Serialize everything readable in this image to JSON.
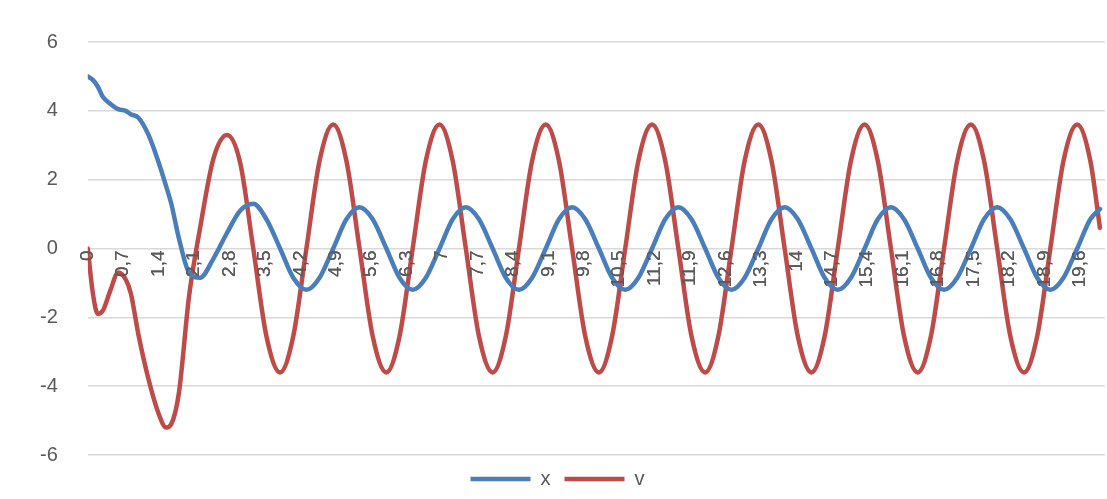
{
  "chart_data": {
    "type": "line",
    "x": [
      0,
      0.1,
      0.2,
      0.3,
      0.45,
      0.6,
      0.75,
      0.85,
      1.0,
      1.2,
      1.4,
      1.55,
      1.65,
      1.8,
      2.0,
      2.22,
      2.48,
      2.75,
      3.01,
      3.27,
      3.53,
      3.8,
      4.06,
      4.32,
      4.58,
      4.85,
      5.11,
      5.37,
      5.63,
      5.9,
      6.16,
      6.42,
      6.68,
      6.95,
      7.21,
      7.47,
      7.73,
      8.0,
      8.26,
      8.52,
      8.78,
      9.05,
      9.31,
      9.57,
      9.83,
      10.1,
      10.36,
      10.62,
      10.88,
      11.15,
      11.41,
      11.67,
      11.93,
      12.2,
      12.46,
      12.72,
      12.98,
      13.25,
      13.51,
      13.77,
      14.03,
      14.3,
      14.56,
      14.82,
      15.08,
      15.35,
      15.61,
      15.87,
      16.13,
      16.4,
      16.66,
      16.92,
      17.18,
      17.45,
      17.71,
      17.97,
      18.23,
      18.5,
      18.76,
      19.02,
      19.28,
      19.55,
      19.81,
      20.0
    ],
    "series": [
      {
        "name": "x",
        "color": "#4a7ebb",
        "values": [
          5,
          4.9,
          4.7,
          4.4,
          4.2,
          4.05,
          4.0,
          3.9,
          3.8,
          3.3,
          2.5,
          1.8,
          1.3,
          0.3,
          -0.7,
          -0.85,
          -0.3,
          0.45,
          1.1,
          1.3,
          0.85,
          0,
          -0.85,
          -1.2,
          -0.85,
          0,
          0.85,
          1.2,
          0.85,
          0,
          -0.85,
          -1.2,
          -0.85,
          0,
          0.85,
          1.2,
          0.85,
          0,
          -0.85,
          -1.2,
          -0.85,
          0,
          0.85,
          1.2,
          0.85,
          0,
          -0.85,
          -1.2,
          -0.85,
          0,
          0.85,
          1.2,
          0.85,
          0,
          -0.85,
          -1.2,
          -0.85,
          0,
          0.85,
          1.2,
          0.85,
          0,
          -0.85,
          -1.2,
          -0.85,
          0,
          0.85,
          1.2,
          0.85,
          0,
          -0.85,
          -1.2,
          -0.85,
          0,
          0.85,
          1.2,
          0.85,
          0,
          -0.85,
          -1.2,
          -0.85,
          0,
          0.85,
          1.15
        ]
      },
      {
        "name": "v",
        "color": "#be4b48",
        "values": [
          0,
          -1.3,
          -1.9,
          -1.8,
          -1.2,
          -0.7,
          -0.9,
          -1.3,
          -2.5,
          -3.8,
          -4.8,
          -5.2,
          -5.1,
          -4.2,
          -1.4,
          0.6,
          2.6,
          3.3,
          2.5,
          0,
          -2.55,
          -3.6,
          -2.55,
          0,
          2.55,
          3.6,
          2.55,
          0,
          -2.55,
          -3.6,
          -2.55,
          0,
          2.55,
          3.6,
          2.55,
          0,
          -2.55,
          -3.6,
          -2.55,
          0,
          2.55,
          3.6,
          2.55,
          0,
          -2.55,
          -3.6,
          -2.55,
          0,
          2.55,
          3.6,
          2.55,
          0,
          -2.55,
          -3.6,
          -2.55,
          0,
          2.55,
          3.6,
          2.55,
          0,
          -2.55,
          -3.6,
          -2.55,
          0,
          2.55,
          3.6,
          2.55,
          0,
          -2.55,
          -3.6,
          -2.55,
          0,
          2.55,
          3.6,
          2.55,
          0,
          -2.55,
          -3.6,
          -2.55,
          0,
          2.55,
          3.6,
          2.55,
          0.6
        ]
      }
    ],
    "xlim": [
      0,
      20.1
    ],
    "xticks": [
      {
        "value": 0,
        "label": "0"
      },
      {
        "value": 0.7,
        "label": "0,7"
      },
      {
        "value": 1.4,
        "label": "1,4"
      },
      {
        "value": 2.1,
        "label": "2,1"
      },
      {
        "value": 2.8,
        "label": "2,8"
      },
      {
        "value": 3.5,
        "label": "3,5"
      },
      {
        "value": 4.2,
        "label": "4,2"
      },
      {
        "value": 4.9,
        "label": "4,9"
      },
      {
        "value": 5.6,
        "label": "5,6"
      },
      {
        "value": 6.3,
        "label": "6,3"
      },
      {
        "value": 7,
        "label": "7"
      },
      {
        "value": 7.7,
        "label": "7,7"
      },
      {
        "value": 8.4,
        "label": "8,4"
      },
      {
        "value": 9.1,
        "label": "9,1"
      },
      {
        "value": 9.8,
        "label": "9,8"
      },
      {
        "value": 10.5,
        "label": "10,5"
      },
      {
        "value": 11.2,
        "label": "11,2"
      },
      {
        "value": 11.9,
        "label": "11,9"
      },
      {
        "value": 12.6,
        "label": "12,6"
      },
      {
        "value": 13.3,
        "label": "13,3"
      },
      {
        "value": 14,
        "label": "14"
      },
      {
        "value": 14.7,
        "label": "14,7"
      },
      {
        "value": 15.4,
        "label": "15,4"
      },
      {
        "value": 16.1,
        "label": "16,1"
      },
      {
        "value": 16.8,
        "label": "16,8"
      },
      {
        "value": 17.5,
        "label": "17,5"
      },
      {
        "value": 18.2,
        "label": "18,2"
      },
      {
        "value": 18.9,
        "label": "18,9"
      },
      {
        "value": 19.6,
        "label": "19,6"
      }
    ],
    "ylim": [
      -6,
      6
    ],
    "yticks": [
      -6,
      -4,
      -2,
      0,
      2,
      4,
      6
    ],
    "grid": "y",
    "legend": "bottom",
    "marker": "none",
    "line_style": "solid"
  }
}
